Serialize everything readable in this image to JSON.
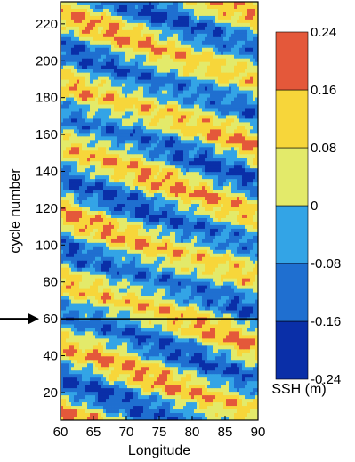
{
  "chart_data": {
    "type": "heatmap",
    "title": "",
    "xlabel": "Longitude",
    "ylabel": "cycle number",
    "xlim": [
      60,
      90
    ],
    "ylim": [
      5,
      232
    ],
    "x_ticks": [
      "60",
      "65",
      "70",
      "75",
      "80",
      "85",
      "90"
    ],
    "y_ticks": [
      "20",
      "40",
      "60",
      "80",
      "100",
      "120",
      "140",
      "160",
      "180",
      "200",
      "220"
    ],
    "grid": false,
    "colorbar": {
      "label": "SSH (m)",
      "position": "right",
      "tick_labels": [
        "0.24",
        "0.16",
        "0.08",
        "0",
        "-0.08",
        "-0.16",
        "-0.24"
      ],
      "levels": [
        -0.24,
        -0.16,
        -0.08,
        0,
        0.08,
        0.16,
        0.24
      ],
      "colors": [
        "#0a2fa8",
        "#1f6fd0",
        "#33a4e6",
        "#e3ea6a",
        "#f7d63a",
        "#e4583a"
      ]
    },
    "pattern": {
      "description": "westward-propagating SSH anomaly bands sloping downward from west to east",
      "band_slope_cycles_per_degree": -1.2,
      "band_period_cycles": 36,
      "amplitude_m": 0.14
    },
    "annotation": {
      "marked_cycle": 60,
      "marker": "arrow-and-horizontal-line"
    }
  }
}
